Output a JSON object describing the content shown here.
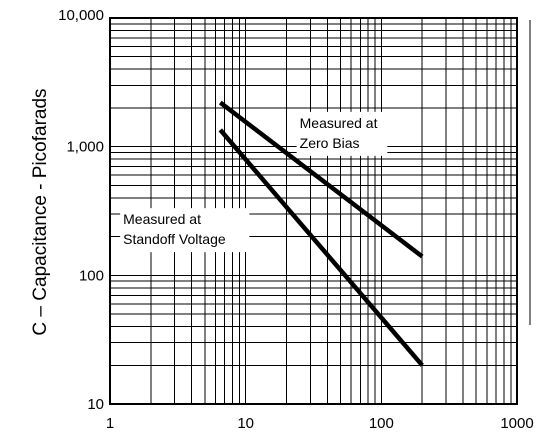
{
  "chart_data": {
    "type": "line",
    "title": "",
    "xlabel": "",
    "ylabel": "C – Capacitance - Picofarads",
    "xscale": "log",
    "yscale": "log",
    "xlim": [
      1,
      1000
    ],
    "ylim": [
      10,
      10000
    ],
    "x_ticks": [
      1,
      10,
      100,
      1000
    ],
    "x_tick_labels": [
      "1",
      "10",
      "100",
      "1000"
    ],
    "y_ticks": [
      10,
      100,
      1000,
      10000
    ],
    "y_tick_labels": [
      "10",
      "100",
      "1,000",
      "10,000"
    ],
    "grid": true,
    "colors": {
      "line": "#000000",
      "grid": "#000000",
      "background": "#ffffff"
    },
    "series": [
      {
        "name": "Measured at Zero Bias",
        "x": [
          6.5,
          200
        ],
        "y": [
          2200,
          140
        ]
      },
      {
        "name": "Measured at Standoff Voltage",
        "x": [
          6.5,
          200
        ],
        "y": [
          1350,
          20
        ]
      }
    ],
    "annotations": [
      {
        "lines": [
          "Measured at",
          "Zero Bias"
        ],
        "x": 25,
        "y": 1400
      },
      {
        "lines": [
          "Measured at",
          "Standoff Voltage"
        ],
        "x": 1.25,
        "y": 250
      }
    ]
  }
}
